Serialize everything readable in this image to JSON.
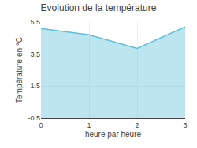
{
  "chart_data": {
    "type": "area",
    "title": "Evolution de la température",
    "x_label": "heure par heure",
    "y_label": "Température en °C",
    "x": [
      0,
      1,
      2,
      3
    ],
    "values": [
      5.1,
      4.7,
      3.85,
      5.2
    ],
    "color": "#5bbfda",
    "xlim": [
      0,
      3
    ],
    "xticks": [
      0,
      1,
      2,
      3
    ],
    "ylim": [
      -0.5,
      5.5
    ],
    "yticks": [
      -0.5,
      1.5,
      3.5,
      5.5
    ],
    "grid": true
  }
}
